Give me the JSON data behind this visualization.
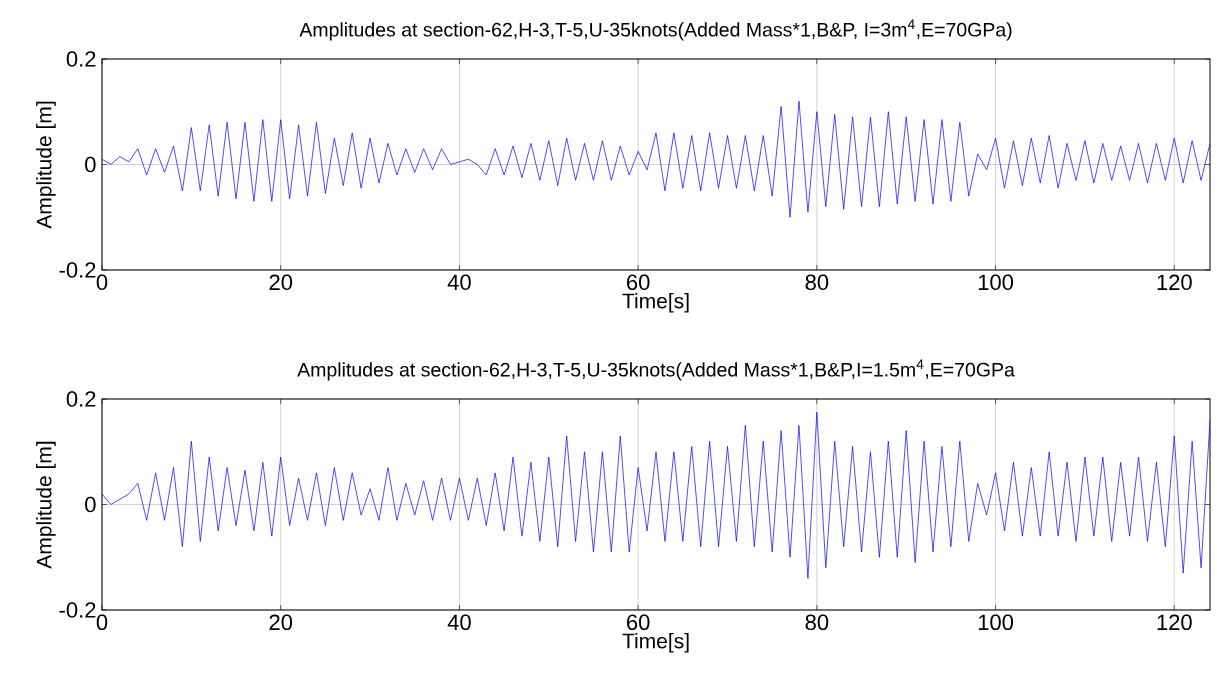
{
  "chart_data": [
    {
      "type": "line",
      "title": "Amplitudes at section-62,H-3,T-5,U-35knots(Added Mass*1,B&P, I=3m$^{4}$,E=70GPa)",
      "xlabel": "Time[s]",
      "ylabel": "Amplitude [m]",
      "color": "#0000ff",
      "grid": true,
      "xlim": [
        0,
        124
      ],
      "ylim": [
        -0.2,
        0.2
      ],
      "xticks": [
        0,
        20,
        40,
        60,
        80,
        100,
        120
      ],
      "yticks": [
        -0.2,
        0,
        0.2
      ],
      "x": [
        0,
        1,
        2,
        3,
        4,
        5,
        6,
        7,
        8,
        9,
        10,
        11,
        12,
        13,
        14,
        15,
        16,
        17,
        18,
        19,
        20,
        21,
        22,
        23,
        24,
        25,
        26,
        27,
        28,
        29,
        30,
        31,
        32,
        33,
        34,
        35,
        36,
        37,
        38,
        39,
        40,
        41,
        42,
        43,
        44,
        45,
        46,
        47,
        48,
        49,
        50,
        51,
        52,
        53,
        54,
        55,
        56,
        57,
        58,
        59,
        60,
        61,
        62,
        63,
        64,
        65,
        66,
        67,
        68,
        69,
        70,
        71,
        72,
        73,
        74,
        75,
        76,
        77,
        78,
        79,
        80,
        81,
        82,
        83,
        84,
        85,
        86,
        87,
        88,
        89,
        90,
        91,
        92,
        93,
        94,
        95,
        96,
        97,
        98,
        99,
        100,
        101,
        102,
        103,
        104,
        105,
        106,
        107,
        108,
        109,
        110,
        111,
        112,
        113,
        114,
        115,
        116,
        117,
        118,
        119,
        120,
        121,
        122,
        123,
        124
      ],
      "values": [
        0.01,
        0,
        0.015,
        0.005,
        0.03,
        -0.02,
        0.03,
        -0.015,
        0.035,
        -0.05,
        0.07,
        -0.05,
        0.075,
        -0.06,
        0.08,
        -0.065,
        0.08,
        -0.07,
        0.085,
        -0.07,
        0.085,
        -0.065,
        0.075,
        -0.06,
        0.08,
        -0.055,
        0.05,
        -0.04,
        0.06,
        -0.045,
        0.05,
        -0.035,
        0.04,
        -0.02,
        0.03,
        -0.015,
        0.03,
        -0.01,
        0.03,
        0,
        0.005,
        0.01,
        0,
        -0.02,
        0.03,
        -0.02,
        0.035,
        -0.025,
        0.04,
        -0.03,
        0.045,
        -0.04,
        0.05,
        -0.03,
        0.04,
        -0.03,
        0.045,
        -0.03,
        0.035,
        -0.02,
        0.025,
        -0.01,
        0.06,
        -0.05,
        0.06,
        -0.045,
        0.055,
        -0.05,
        0.06,
        -0.045,
        0.055,
        -0.045,
        0.055,
        -0.05,
        0.055,
        -0.06,
        0.11,
        -0.1,
        0.12,
        -0.09,
        0.1,
        -0.08,
        0.095,
        -0.085,
        0.09,
        -0.08,
        0.09,
        -0.08,
        0.1,
        -0.075,
        0.09,
        -0.07,
        0.085,
        -0.075,
        0.085,
        -0.07,
        0.08,
        -0.06,
        0.02,
        -0.01,
        0.05,
        -0.045,
        0.045,
        -0.04,
        0.05,
        -0.035,
        0.055,
        -0.045,
        0.04,
        -0.03,
        0.045,
        -0.035,
        0.04,
        -0.03,
        0.035,
        -0.03,
        0.04,
        -0.035,
        0.04,
        -0.03,
        0.05,
        -0.035,
        0.045,
        -0.03,
        0.04
      ]
    },
    {
      "type": "line",
      "title": "Amplitudes at section-62,H-3,T-5,U-35knots(Added Mass*1,B&P,I=1.5m$^{4}$,E=70GPa",
      "xlabel": "Time[s]",
      "ylabel": "Amplitude [m]",
      "color": "#0000ff",
      "grid": true,
      "xlim": [
        0,
        124
      ],
      "ylim": [
        -0.2,
        0.2
      ],
      "xticks": [
        0,
        20,
        40,
        60,
        80,
        100,
        120
      ],
      "yticks": [
        -0.2,
        0,
        0.2
      ],
      "x": [
        0,
        1,
        2,
        3,
        4,
        5,
        6,
        7,
        8,
        9,
        10,
        11,
        12,
        13,
        14,
        15,
        16,
        17,
        18,
        19,
        20,
        21,
        22,
        23,
        24,
        25,
        26,
        27,
        28,
        29,
        30,
        31,
        32,
        33,
        34,
        35,
        36,
        37,
        38,
        39,
        40,
        41,
        42,
        43,
        44,
        45,
        46,
        47,
        48,
        49,
        50,
        51,
        52,
        53,
        54,
        55,
        56,
        57,
        58,
        59,
        60,
        61,
        62,
        63,
        64,
        65,
        66,
        67,
        68,
        69,
        70,
        71,
        72,
        73,
        74,
        75,
        76,
        77,
        78,
        79,
        80,
        81,
        82,
        83,
        84,
        85,
        86,
        87,
        88,
        89,
        90,
        91,
        92,
        93,
        94,
        95,
        96,
        97,
        98,
        99,
        100,
        101,
        102,
        103,
        104,
        105,
        106,
        107,
        108,
        109,
        110,
        111,
        112,
        113,
        114,
        115,
        116,
        117,
        118,
        119,
        120,
        121,
        122,
        123,
        124
      ],
      "values": [
        0.02,
        0,
        0.01,
        0.02,
        0.04,
        -0.03,
        0.06,
        -0.03,
        0.07,
        -0.08,
        0.12,
        -0.07,
        0.09,
        -0.05,
        0.07,
        -0.04,
        0.065,
        -0.05,
        0.08,
        -0.06,
        0.09,
        -0.04,
        0.05,
        -0.03,
        0.06,
        -0.04,
        0.07,
        -0.03,
        0.06,
        -0.02,
        0.03,
        -0.03,
        0.07,
        -0.03,
        0.04,
        -0.02,
        0.045,
        -0.03,
        0.05,
        -0.03,
        0.05,
        -0.03,
        0.05,
        -0.04,
        0.06,
        -0.05,
        0.09,
        -0.06,
        0.08,
        -0.07,
        0.09,
        -0.08,
        0.13,
        -0.07,
        0.1,
        -0.09,
        0.1,
        -0.09,
        0.13,
        -0.09,
        0.07,
        -0.05,
        0.1,
        -0.07,
        0.1,
        -0.07,
        0.11,
        -0.08,
        0.12,
        -0.08,
        0.11,
        -0.07,
        0.15,
        -0.08,
        0.12,
        -0.09,
        0.14,
        -0.1,
        0.15,
        -0.14,
        0.175,
        -0.12,
        0.12,
        -0.08,
        0.11,
        -0.09,
        0.1,
        -0.1,
        0.12,
        -0.1,
        0.14,
        -0.11,
        0.12,
        -0.09,
        0.11,
        -0.08,
        0.12,
        -0.07,
        0.04,
        -0.02,
        0.06,
        -0.05,
        0.08,
        -0.06,
        0.07,
        -0.06,
        0.1,
        -0.06,
        0.08,
        -0.07,
        0.09,
        -0.06,
        0.09,
        -0.07,
        0.08,
        -0.06,
        0.09,
        -0.07,
        0.08,
        -0.08,
        0.13,
        -0.13,
        0.12,
        -0.12,
        0.16
      ]
    }
  ]
}
